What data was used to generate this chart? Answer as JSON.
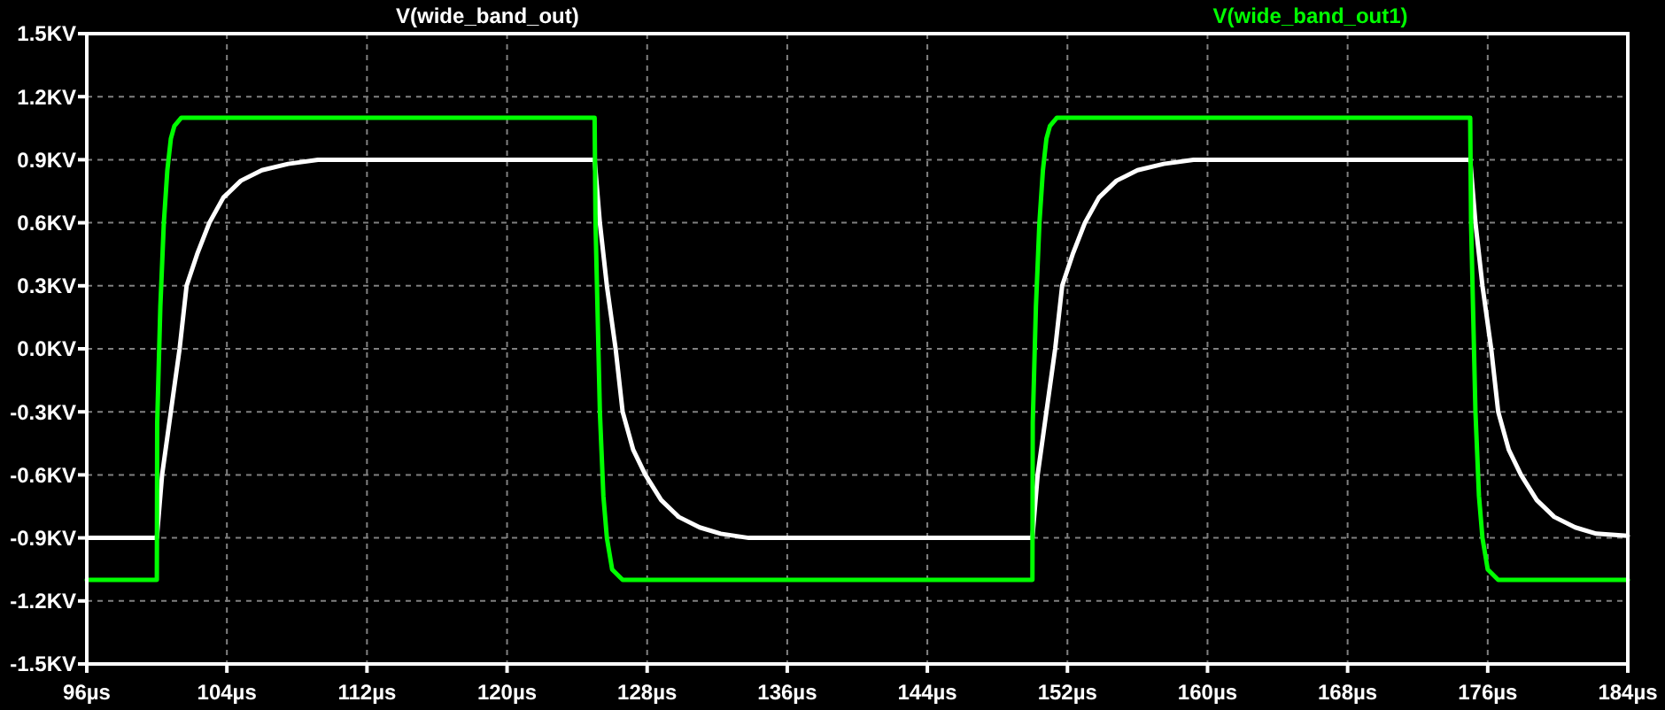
{
  "chart_data": {
    "type": "line",
    "legend": "top",
    "grid": true,
    "line_style": "solid",
    "xlim": [
      96,
      184
    ],
    "ylim": [
      -1.5,
      1.5
    ],
    "xticks": [
      {
        "value": 96,
        "label": "96µs"
      },
      {
        "value": 104,
        "label": "104µs"
      },
      {
        "value": 112,
        "label": "112µs"
      },
      {
        "value": 120,
        "label": "120µs"
      },
      {
        "value": 128,
        "label": "128µs"
      },
      {
        "value": 136,
        "label": "136µs"
      },
      {
        "value": 144,
        "label": "144µs"
      },
      {
        "value": 152,
        "label": "152µs"
      },
      {
        "value": 160,
        "label": "160µs"
      },
      {
        "value": 168,
        "label": "168µs"
      },
      {
        "value": 176,
        "label": "176µs"
      },
      {
        "value": 184,
        "label": "184µs"
      }
    ],
    "yticks": [
      {
        "value": 1.5,
        "label": "1.5KV"
      },
      {
        "value": 1.2,
        "label": "1.2KV"
      },
      {
        "value": 0.9,
        "label": "0.9KV"
      },
      {
        "value": 0.6,
        "label": "0.6KV"
      },
      {
        "value": 0.3,
        "label": "0.3KV"
      },
      {
        "value": 0,
        "label": "0.0KV"
      },
      {
        "value": -0.3,
        "label": "-0.3KV"
      },
      {
        "value": -0.6,
        "label": "-0.6KV"
      },
      {
        "value": -0.9,
        "label": "-0.9KV"
      },
      {
        "value": -1.2,
        "label": "-1.2KV"
      },
      {
        "value": -1.5,
        "label": "-1.5KV"
      }
    ],
    "series": [
      {
        "name": "V(wide_band_out)",
        "color": "#ffffff",
        "x": [
          96,
          100,
          100.3,
          100.8,
          101.3,
          101.7,
          102.3,
          103,
          103.8,
          104.8,
          106,
          107.5,
          109.2,
          125,
          125.3,
          125.7,
          126.2,
          126.6,
          127.2,
          127.9,
          128.8,
          129.8,
          131,
          132.2,
          133.8,
          150,
          150.3,
          150.8,
          151.3,
          151.7,
          152.3,
          153,
          153.8,
          154.8,
          156,
          157.5,
          159.2,
          175,
          175.3,
          175.7,
          176.2,
          176.6,
          177.2,
          177.9,
          178.8,
          179.8,
          181,
          182.2,
          184
        ],
        "values": [
          -0.9,
          -0.9,
          -0.6,
          -0.3,
          0,
          0.3,
          0.45,
          0.6,
          0.72,
          0.8,
          0.85,
          0.88,
          0.9,
          0.9,
          0.6,
          0.3,
          0,
          -0.3,
          -0.48,
          -0.6,
          -0.72,
          -0.8,
          -0.85,
          -0.88,
          -0.9,
          -0.9,
          -0.6,
          -0.3,
          0,
          0.3,
          0.45,
          0.6,
          0.72,
          0.8,
          0.85,
          0.88,
          0.9,
          0.9,
          0.6,
          0.3,
          0,
          -0.3,
          -0.48,
          -0.6,
          -0.72,
          -0.8,
          -0.85,
          -0.88,
          -0.89
        ]
      },
      {
        "name": "V(wide_band_out1)",
        "color": "#00ff00",
        "x": [
          96,
          100,
          100.02,
          100.2,
          100.4,
          100.6,
          100.8,
          101,
          101.4,
          125,
          125.05,
          125.3,
          125.5,
          125.7,
          126,
          126.6,
          150,
          150.02,
          150.2,
          150.4,
          150.6,
          150.8,
          151,
          151.4,
          175,
          175.05,
          175.3,
          175.5,
          175.7,
          176,
          176.6,
          184
        ],
        "values": [
          -1.1,
          -1.1,
          -0.35,
          0.2,
          0.6,
          0.85,
          1,
          1.06,
          1.1,
          1.1,
          0.6,
          -0.3,
          -0.7,
          -0.9,
          -1.05,
          -1.1,
          -1.1,
          -0.35,
          0.2,
          0.6,
          0.85,
          1,
          1.06,
          1.1,
          1.1,
          0.6,
          -0.3,
          -0.7,
          -0.9,
          -1.05,
          -1.1,
          -1.1
        ]
      }
    ]
  }
}
